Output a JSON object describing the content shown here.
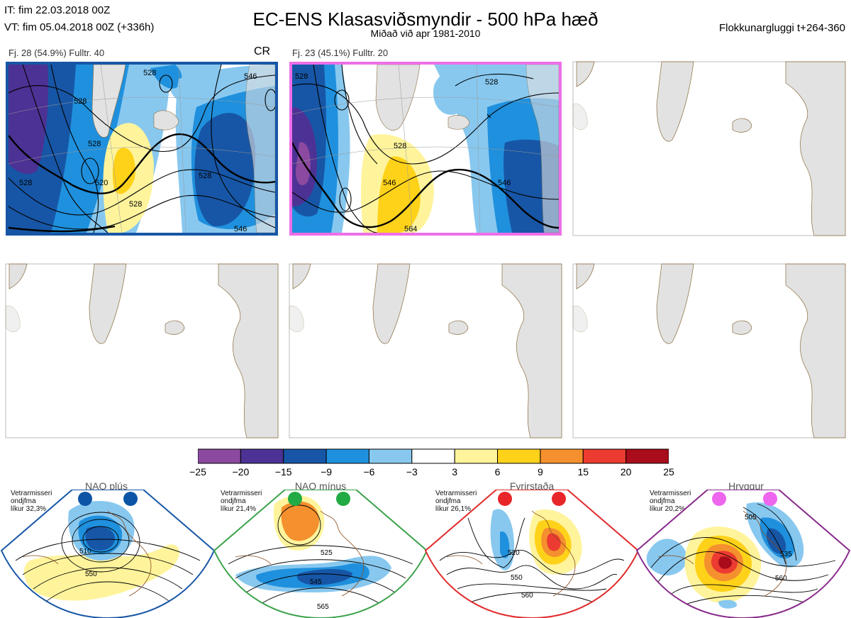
{
  "header": {
    "it": "IT: fim 22.03.2018 00Z",
    "vt": "VT: fim 05.04.2018 00Z  (+336h)",
    "title": "EC-ENS Klasasviðsmyndir - 500 hPa hæð",
    "subtitle": "Miðað við apr 1981-2010",
    "cluster_window": "Flokkunargluggi t+264-360"
  },
  "clusters": [
    {
      "label": "Fj. 28 (54.9%)   Fulltr. 40",
      "tag": "CR",
      "border_color": "#1756a6",
      "contour_labels": [
        "528",
        "528",
        "528",
        "546",
        "528",
        "520",
        "528",
        "546",
        "528"
      ]
    },
    {
      "label": "Fj. 23 (45.1%)   Fulltr. 20",
      "tag": "",
      "border_color": "#ee6ee8",
      "contour_labels": [
        "528",
        "528",
        "546",
        "546",
        "564",
        "528"
      ]
    }
  ],
  "empty_panels": 4,
  "legend": {
    "ticks": [
      "−25",
      "−20",
      "−15",
      "−9",
      "−6",
      "−3",
      "3",
      "6",
      "9",
      "15",
      "20",
      "25"
    ],
    "colors": [
      "#8b4aa0",
      "#4c3294",
      "#1756a6",
      "#1f90dd",
      "#88c8ef",
      "#ffffff",
      "#fff49c",
      "#ffd21a",
      "#f5902e",
      "#ec3b30",
      "#a90c1a"
    ]
  },
  "regimes": [
    {
      "name": "NAO plús",
      "note": [
        "Vetrarmisseri",
        "ondjfma",
        "líkur 32,3%"
      ],
      "frame_color": "#1756a6",
      "dot_color": "#0c55a6",
      "contour_labels": [
        "510",
        "550"
      ]
    },
    {
      "name": "NAO mínus",
      "note": [
        "Vetrarmisseri",
        "ondjfma",
        "líkur 21,4%"
      ],
      "frame_color": "#3aa24a",
      "dot_color": "#22aa44",
      "contour_labels": [
        "525",
        "545",
        "565"
      ]
    },
    {
      "name": "Fyrirstaða",
      "note": [
        "Vetrarmisseri",
        "ondjfma",
        "líkur 26,1%"
      ],
      "frame_color": "#e02a2a",
      "dot_color": "#e8262a",
      "contour_labels": [
        "520",
        "550",
        "560"
      ]
    },
    {
      "name": "Hryggur",
      "note": [
        "Vetrarmisseri",
        "ondjfma",
        "líkur 20,2%"
      ],
      "frame_color": "#882a8a",
      "dot_color": "#ee66ee",
      "contour_labels": [
        "505",
        "535",
        "560"
      ]
    }
  ]
}
